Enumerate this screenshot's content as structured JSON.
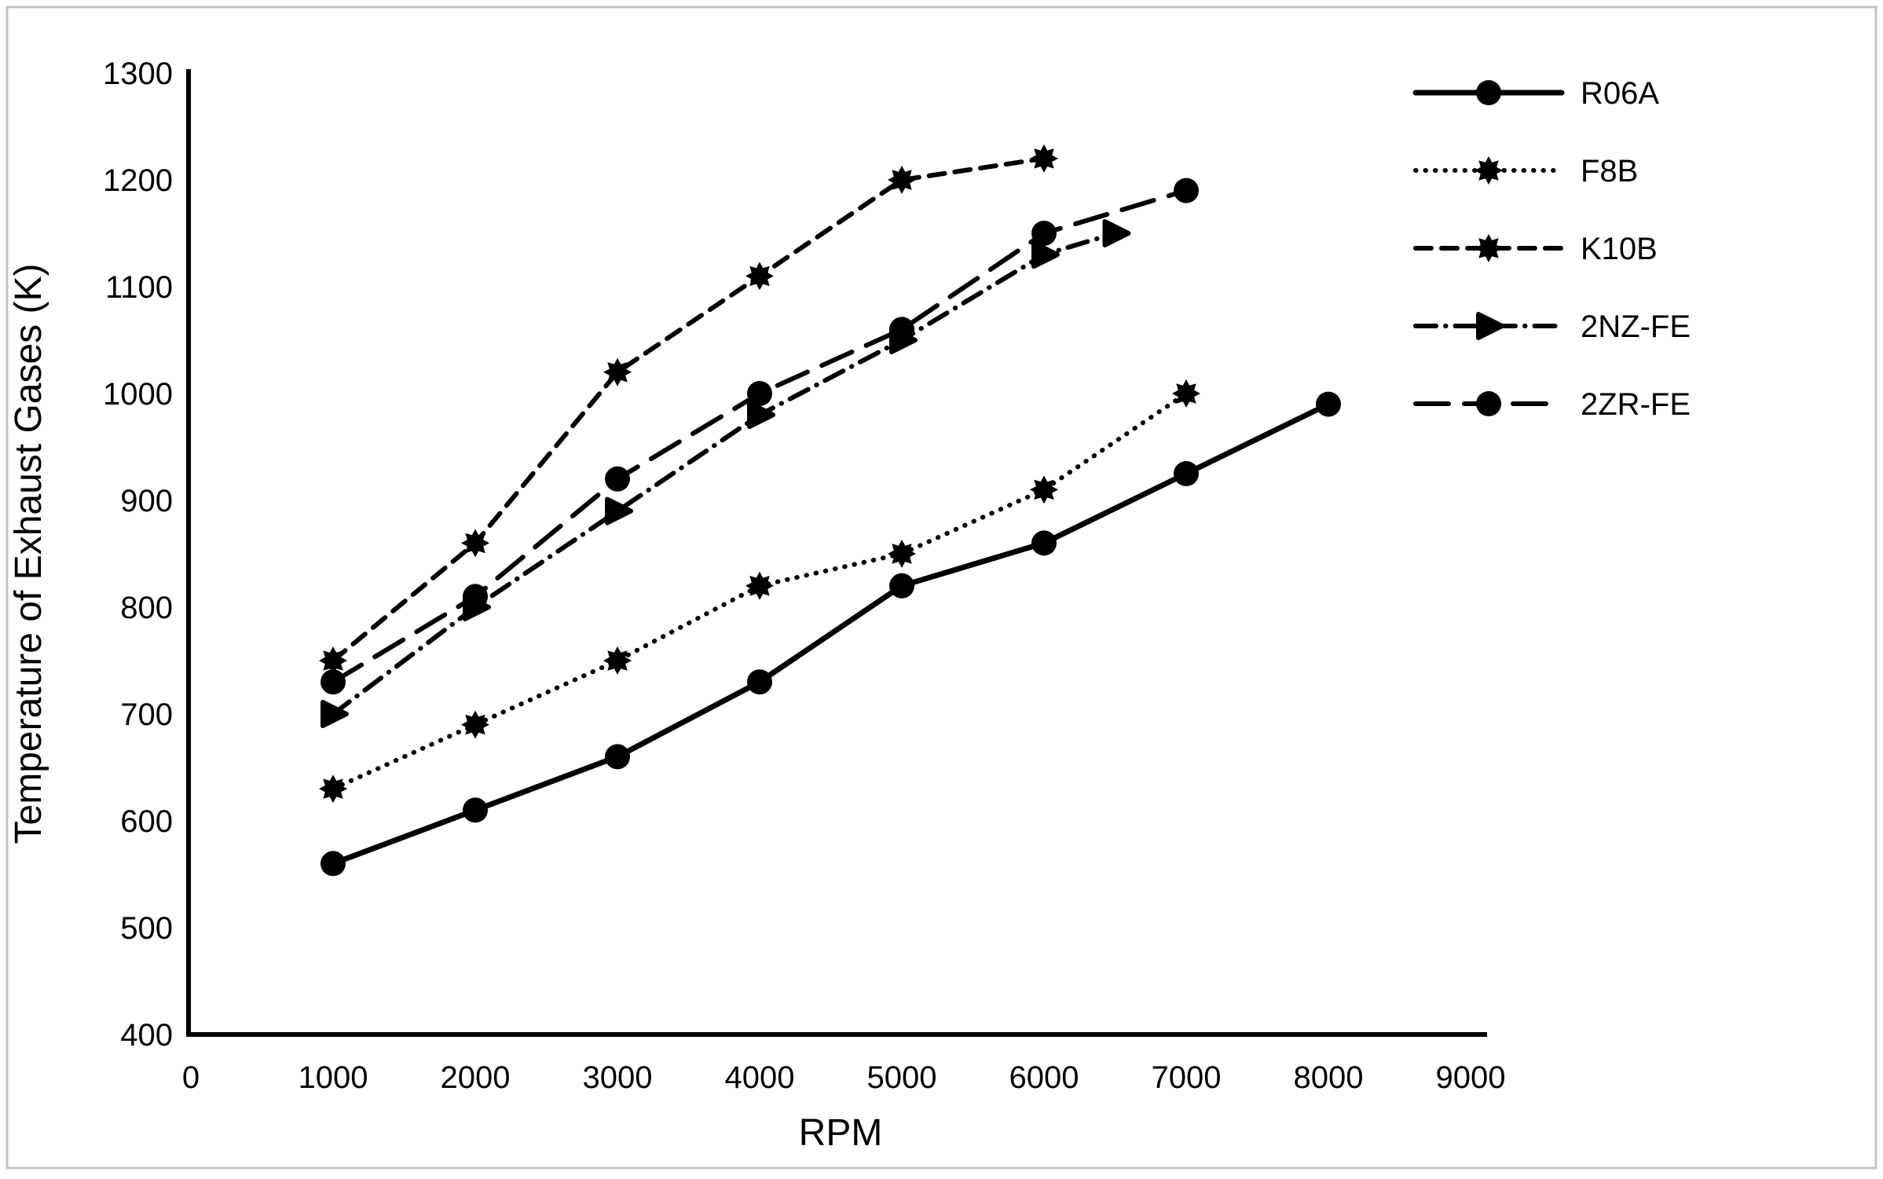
{
  "figure": {
    "background": "#ffffff",
    "border_color": "#c4c4c4",
    "ink_color": "#000000"
  },
  "chart_data": {
    "type": "line",
    "title": "",
    "xlabel": "RPM",
    "ylabel": "Temperature of Exhaust Gases (K)",
    "xlim": [
      0,
      9000
    ],
    "ylim": [
      400,
      1300
    ],
    "grid": false,
    "legend_position": "top-right",
    "x_ticks": [
      0,
      1000,
      2000,
      3000,
      4000,
      5000,
      6000,
      7000,
      8000,
      9000
    ],
    "y_ticks": [
      400,
      500,
      600,
      700,
      800,
      900,
      1000,
      1100,
      1200,
      1300
    ],
    "series": [
      {
        "name": "R06A",
        "line_style": "solid",
        "marker": "circle",
        "x": [
          1000,
          2000,
          3000,
          4000,
          5000,
          6000,
          7000,
          8000
        ],
        "y": [
          560,
          610,
          660,
          730,
          820,
          860,
          925,
          990
        ]
      },
      {
        "name": "F8B",
        "line_style": "dotted",
        "marker": "star",
        "x": [
          1000,
          2000,
          3000,
          4000,
          5000,
          6000,
          7000
        ],
        "y": [
          630,
          690,
          750,
          820,
          850,
          910,
          1000
        ]
      },
      {
        "name": "K10B",
        "line_style": "dashed",
        "marker": "star",
        "x": [
          1000,
          2000,
          3000,
          4000,
          5000,
          6000
        ],
        "y": [
          750,
          860,
          1020,
          1110,
          1200,
          1220
        ]
      },
      {
        "name": "2NZ-FE",
        "line_style": "dashdot",
        "marker": "triangle",
        "x": [
          1000,
          2000,
          3000,
          4000,
          5000,
          6000,
          6500
        ],
        "y": [
          700,
          800,
          890,
          980,
          1050,
          1130,
          1150
        ]
      },
      {
        "name": "2ZR-FE",
        "line_style": "longdash",
        "marker": "circle",
        "x": [
          1000,
          2000,
          3000,
          4000,
          5000,
          6000,
          7000
        ],
        "y": [
          730,
          810,
          920,
          1000,
          1060,
          1150,
          1190
        ]
      }
    ]
  }
}
